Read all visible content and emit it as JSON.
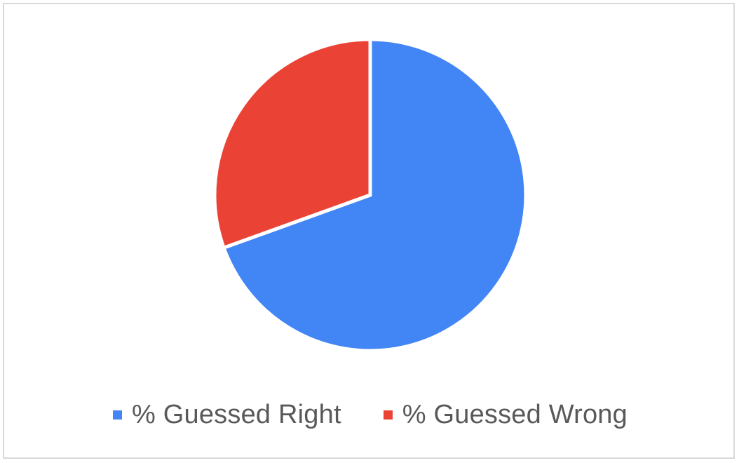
{
  "chart_data": {
    "type": "pie",
    "title": "",
    "slices": [
      {
        "name": "% Guessed Right",
        "value": 69.5,
        "color": "#4285f4"
      },
      {
        "name": "% Guessed Wrong",
        "value": 30.5,
        "color": "#ea4335"
      }
    ],
    "start_angle_deg": 0,
    "direction": "clockwise",
    "legend_position": "bottom",
    "data_labels": false
  },
  "legend": {
    "items": [
      {
        "label": "% Guessed Right",
        "color": "#4285f4"
      },
      {
        "label": "% Guessed Wrong",
        "color": "#ea4335"
      }
    ]
  }
}
